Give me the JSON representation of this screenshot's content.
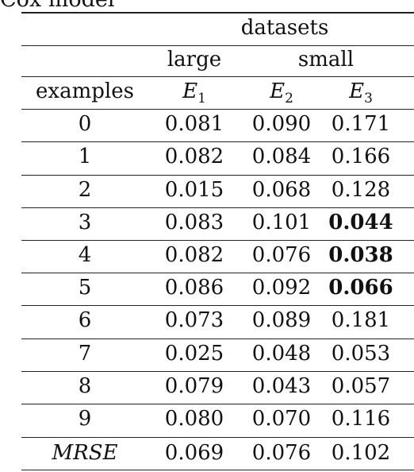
{
  "caption": "Cox model",
  "table": {
    "group_header": "datasets",
    "subgroup_headers": [
      "large",
      "small"
    ],
    "row_header": "examples",
    "columns": [
      {
        "base": "E",
        "sub": "1"
      },
      {
        "base": "E",
        "sub": "2"
      },
      {
        "base": "E",
        "sub": "3"
      }
    ],
    "rows": [
      {
        "label": "0",
        "values": [
          "0.081",
          "0.090",
          "0.171"
        ],
        "bold": [
          false,
          false,
          false
        ]
      },
      {
        "label": "1",
        "values": [
          "0.082",
          "0.084",
          "0.166"
        ],
        "bold": [
          false,
          false,
          false
        ]
      },
      {
        "label": "2",
        "values": [
          "0.015",
          "0.068",
          "0.128"
        ],
        "bold": [
          false,
          false,
          false
        ]
      },
      {
        "label": "3",
        "values": [
          "0.083",
          "0.101",
          "0.044"
        ],
        "bold": [
          false,
          false,
          true
        ]
      },
      {
        "label": "4",
        "values": [
          "0.082",
          "0.076",
          "0.038"
        ],
        "bold": [
          false,
          false,
          true
        ]
      },
      {
        "label": "5",
        "values": [
          "0.086",
          "0.092",
          "0.066"
        ],
        "bold": [
          false,
          false,
          true
        ]
      },
      {
        "label": "6",
        "values": [
          "0.073",
          "0.089",
          "0.181"
        ],
        "bold": [
          false,
          false,
          false
        ]
      },
      {
        "label": "7",
        "values": [
          "0.025",
          "0.048",
          "0.053"
        ],
        "bold": [
          false,
          false,
          false
        ]
      },
      {
        "label": "8",
        "values": [
          "0.079",
          "0.043",
          "0.057"
        ],
        "bold": [
          false,
          false,
          false
        ]
      },
      {
        "label": "9",
        "values": [
          "0.080",
          "0.070",
          "0.116"
        ],
        "bold": [
          false,
          false,
          false
        ]
      }
    ],
    "summary_row": {
      "label": "MRSE",
      "values": [
        "0.069",
        "0.076",
        "0.102"
      ]
    }
  }
}
